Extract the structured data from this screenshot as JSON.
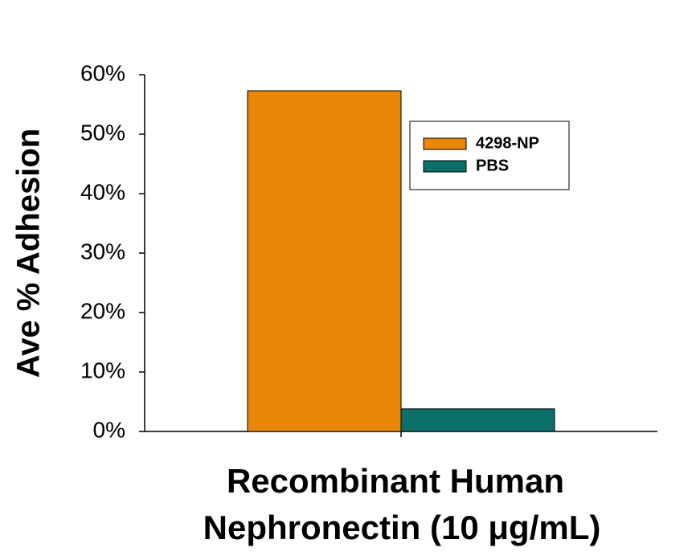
{
  "chart_data": {
    "type": "bar",
    "y_label": "Ave % Adhesion",
    "x_label": [
      "Recombinant Human",
      "Nephronectin (10 μg/mL)"
    ],
    "categories": [
      null
    ],
    "series": [
      {
        "name": "4298-NP",
        "color": "#e8870a",
        "values": [
          57.3
        ]
      },
      {
        "name": "PBS",
        "color": "#0a7068",
        "values": [
          3.8
        ]
      }
    ],
    "ylim": [
      0,
      60
    ],
    "yticks": [
      {
        "value": 0,
        "label": "0%"
      },
      {
        "value": 10,
        "label": "10%"
      },
      {
        "value": 20,
        "label": "20%"
      },
      {
        "value": 30,
        "label": "30%"
      },
      {
        "value": 40,
        "label": "40%"
      },
      {
        "value": 50,
        "label": "50%"
      },
      {
        "value": 60,
        "label": "60%"
      }
    ],
    "legend": "upper-right"
  }
}
